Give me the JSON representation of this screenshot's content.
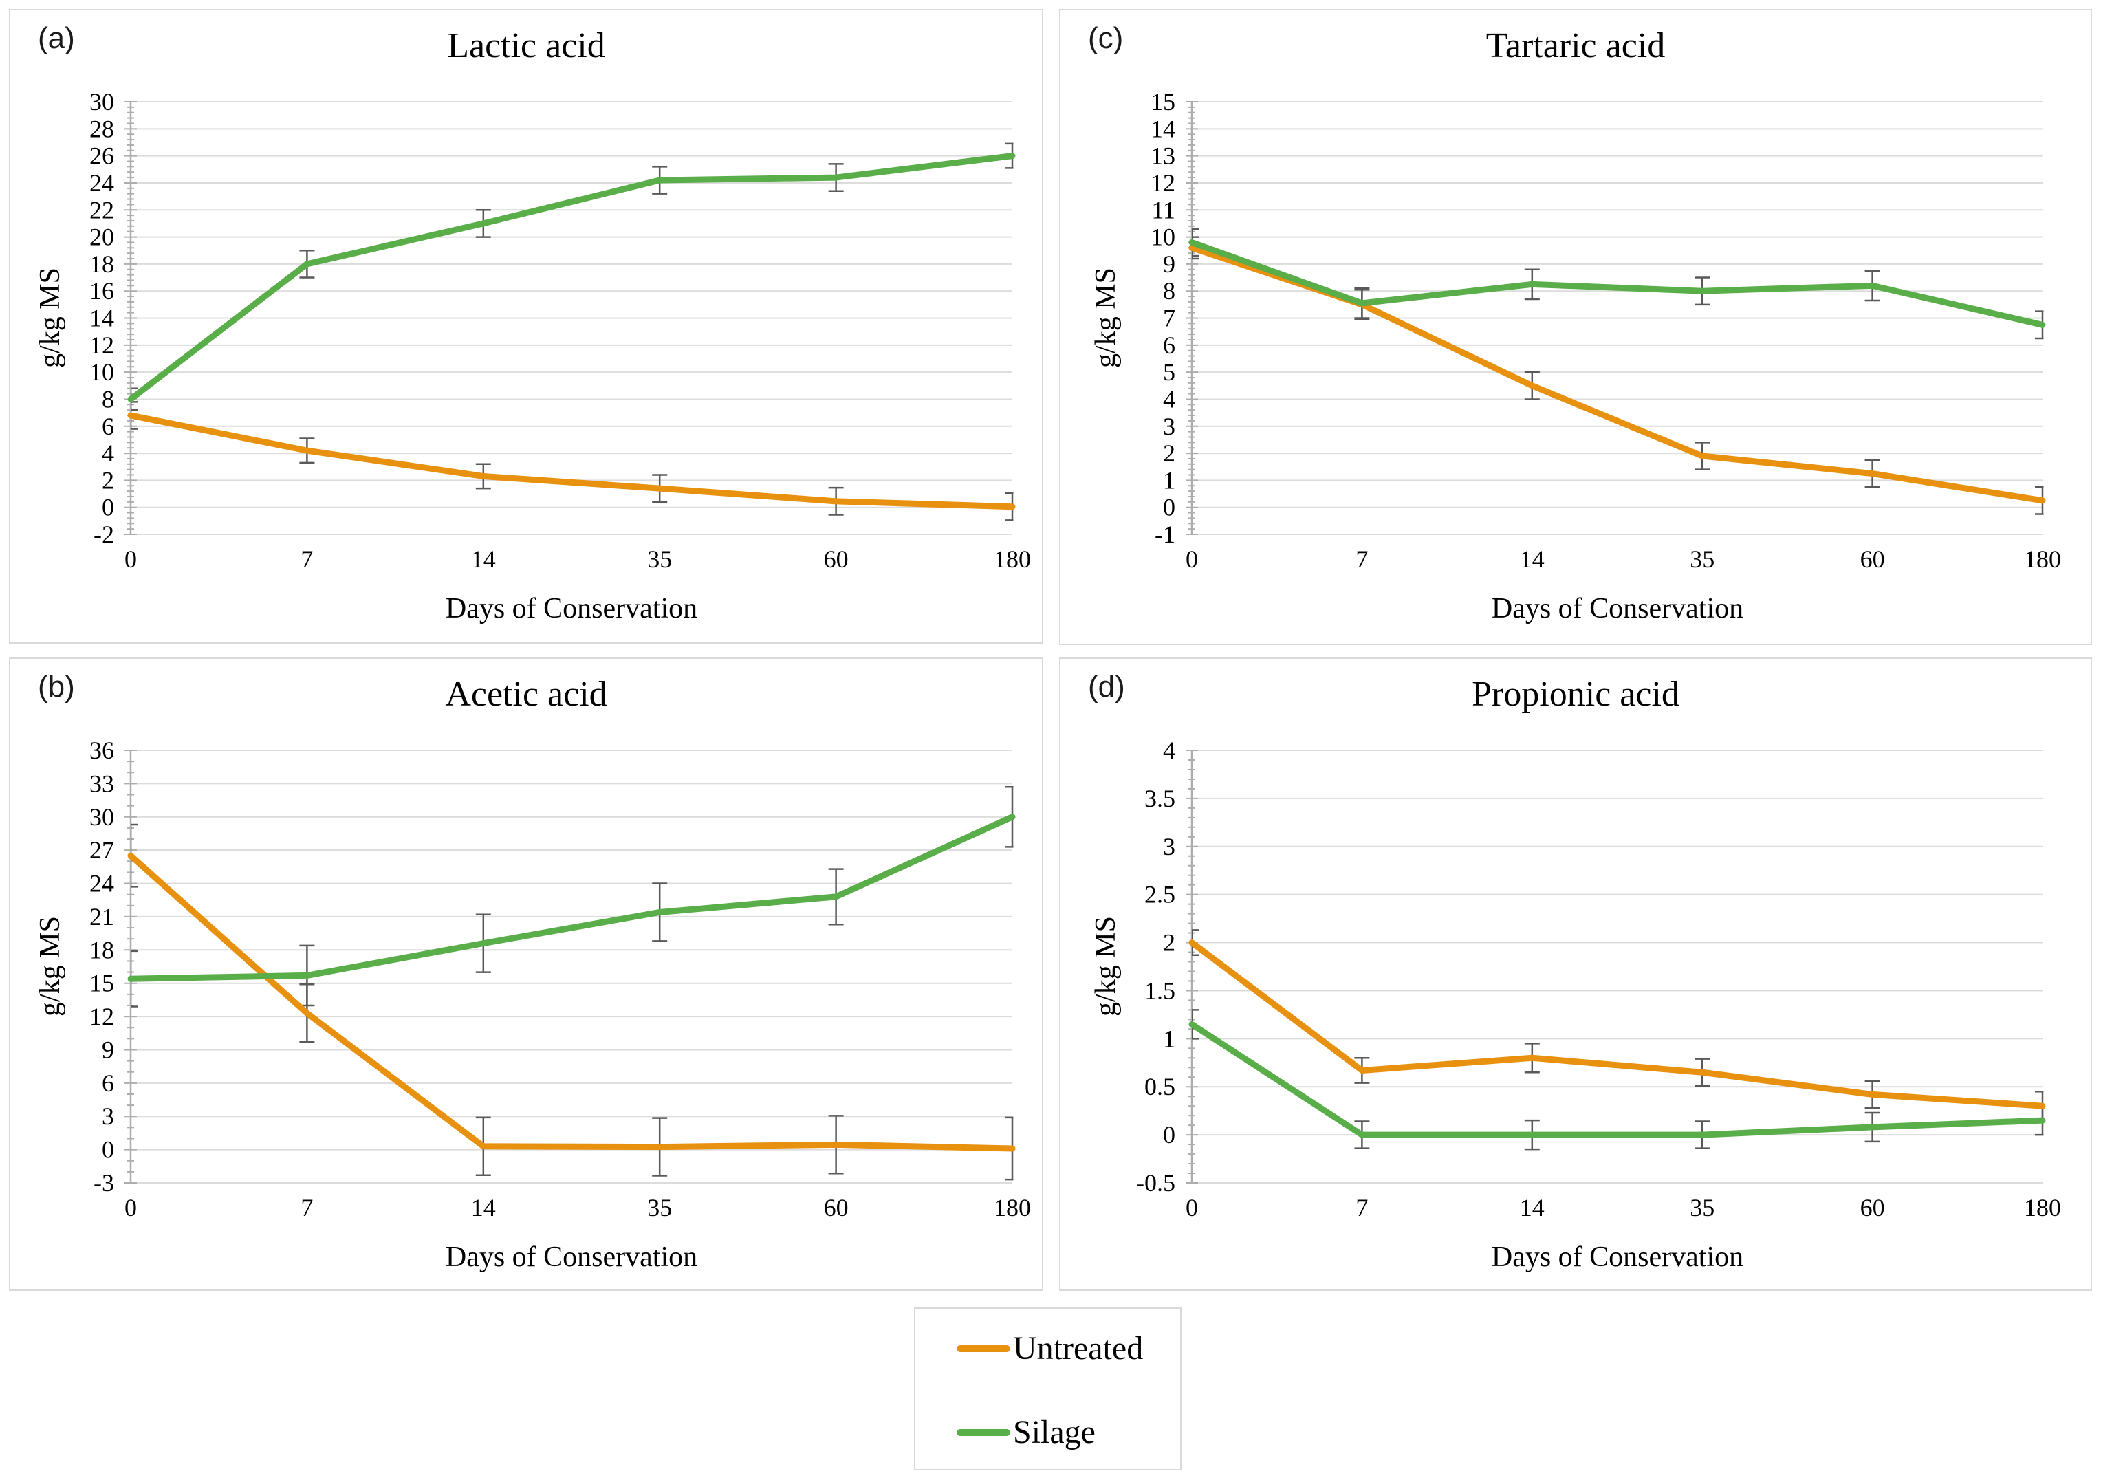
{
  "figure": {
    "xlabel": "Days of Conservation",
    "ylabel": "g/kg MS",
    "colors": {
      "untreated": "#E8910F",
      "silage": "#5AAE49",
      "gridline": "#DCDCDC",
      "axis": "#ADADAD",
      "error_bar": "#595959",
      "panel_border": "#D9D9D9"
    },
    "legend": {
      "items": [
        {
          "label": "Untreated",
          "color": "#E8910F"
        },
        {
          "label": "Silage",
          "color": "#5AAE49"
        }
      ]
    }
  },
  "chart_data": [
    {
      "id": "a",
      "panel_label": "(a)",
      "type": "line",
      "title": "Lactic acid",
      "xlabel": "Days of Conservation",
      "ylabel": "g/kg MS",
      "categories": [
        "0",
        "7",
        "14",
        "35",
        "60",
        "180"
      ],
      "ylim": [
        -2,
        30
      ],
      "ytick_step": 2,
      "minor_divisions": 5,
      "grid": true,
      "legend_position": "none",
      "series": [
        {
          "name": "Untreated",
          "color": "#E8910F",
          "values": [
            6.8,
            4.2,
            2.3,
            1.4,
            0.45,
            0.05
          ],
          "errors": [
            1.0,
            0.9,
            0.9,
            1.0,
            1.0,
            1.0
          ]
        },
        {
          "name": "Silage",
          "color": "#5AAE49",
          "values": [
            8.0,
            18.0,
            21.0,
            24.2,
            24.4,
            26.0
          ],
          "errors": [
            0.8,
            1.0,
            1.0,
            1.0,
            1.0,
            0.9
          ]
        }
      ]
    },
    {
      "id": "b",
      "panel_label": "(b)",
      "type": "line",
      "title": "Acetic acid",
      "xlabel": "Days of Conservation",
      "ylabel": "g/kg MS",
      "categories": [
        "0",
        "7",
        "14",
        "35",
        "60",
        "180"
      ],
      "ylim": [
        -3,
        36
      ],
      "ytick_step": 3,
      "minor_divisions": 3,
      "grid": true,
      "legend_position": "none",
      "series": [
        {
          "name": "Untreated",
          "color": "#E8910F",
          "values": [
            26.5,
            12.3,
            0.3,
            0.25,
            0.45,
            0.1
          ],
          "errors": [
            2.8,
            2.6,
            2.6,
            2.6,
            2.6,
            2.8
          ]
        },
        {
          "name": "Silage",
          "color": "#5AAE49",
          "values": [
            15.4,
            15.7,
            18.6,
            21.4,
            22.8,
            30.0
          ],
          "errors": [
            2.5,
            2.7,
            2.6,
            2.6,
            2.5,
            2.7
          ]
        }
      ]
    },
    {
      "id": "c",
      "panel_label": "(c)",
      "type": "line",
      "title": "Tartaric acid",
      "xlabel": "Days of Conservation",
      "ylabel": "g/kg MS",
      "categories": [
        "0",
        "7",
        "14",
        "35",
        "60",
        "180"
      ],
      "ylim": [
        -1,
        15
      ],
      "ytick_step": 1,
      "minor_divisions": 5,
      "grid": true,
      "legend_position": "none",
      "series": [
        {
          "name": "Untreated",
          "color": "#E8910F",
          "values": [
            9.6,
            7.5,
            4.5,
            1.9,
            1.25,
            0.25
          ],
          "errors": [
            0.4,
            0.55,
            0.5,
            0.5,
            0.5,
            0.5
          ]
        },
        {
          "name": "Silage",
          "color": "#5AAE49",
          "values": [
            9.8,
            7.55,
            8.25,
            8.0,
            8.2,
            6.75
          ],
          "errors": [
            0.5,
            0.55,
            0.55,
            0.5,
            0.55,
            0.5
          ]
        }
      ]
    },
    {
      "id": "d",
      "panel_label": "(d)",
      "type": "line",
      "title": "Propionic acid",
      "xlabel": "Days of Conservation",
      "ylabel": "g/kg MS",
      "categories": [
        "0",
        "7",
        "14",
        "35",
        "60",
        "180"
      ],
      "ylim": [
        -0.5,
        4
      ],
      "ytick_step": 0.5,
      "minor_divisions": 5,
      "grid": true,
      "legend_position": "none",
      "series": [
        {
          "name": "Untreated",
          "color": "#E8910F",
          "values": [
            2.0,
            0.67,
            0.8,
            0.65,
            0.42,
            0.3
          ],
          "errors": [
            0.13,
            0.13,
            0.15,
            0.14,
            0.14,
            0.15
          ]
        },
        {
          "name": "Silage",
          "color": "#5AAE49",
          "values": [
            1.15,
            0.0,
            0.0,
            0.0,
            0.08,
            0.15
          ],
          "errors": [
            0.15,
            0.14,
            0.15,
            0.14,
            0.15,
            0.15
          ]
        }
      ]
    }
  ]
}
